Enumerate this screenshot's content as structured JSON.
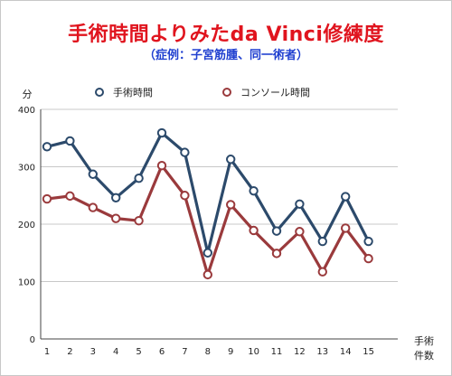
{
  "chart_data": {
    "type": "line",
    "title": "手術時間よりみたda Vinci修練度",
    "subtitle": "（症例：子宮筋腫、同一術者）",
    "ylabel": "分",
    "xlabel": [
      "手術",
      "件数"
    ],
    "x": [
      "1",
      "2",
      "3",
      "4",
      "5",
      "6",
      "7",
      "8",
      "9",
      "10",
      "11",
      "12",
      "13",
      "14",
      "15"
    ],
    "ylim": [
      0,
      400
    ],
    "yticks": [
      "0",
      "100",
      "200",
      "300",
      "400"
    ],
    "grid": true,
    "legend_position": "top",
    "series": [
      {
        "name": "手術時間",
        "color": "#2c4a6b",
        "values": [
          335,
          345,
          287,
          246,
          280,
          359,
          325,
          150,
          313,
          258,
          188,
          235,
          170,
          248,
          170
        ]
      },
      {
        "name": "コンソール時間",
        "color": "#9a3a3c",
        "values": [
          244,
          249,
          229,
          210,
          206,
          302,
          250,
          112,
          234,
          189,
          149,
          187,
          117,
          193,
          140
        ]
      }
    ]
  }
}
